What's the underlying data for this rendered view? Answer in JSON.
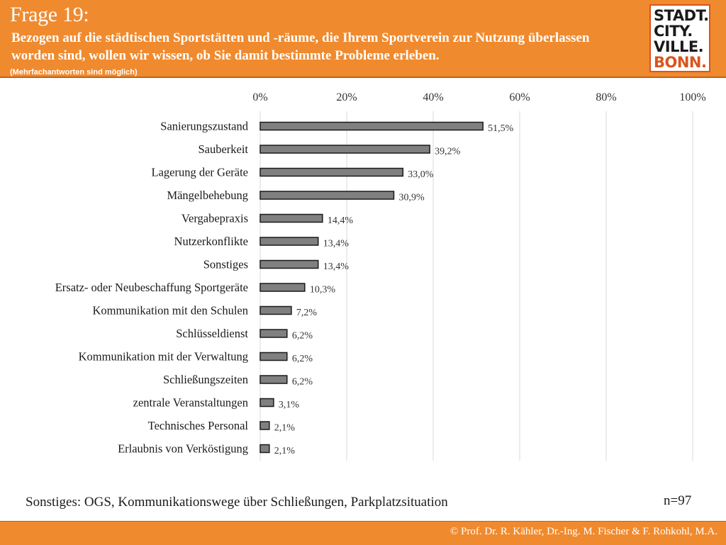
{
  "header": {
    "title": "Frage 19:",
    "question": "Bezogen auf die städtischen Sportstätten und -räume, die Ihrem Sportverein zur Nutzung überlassen worden sind, wollen wir wissen, ob Sie damit bestimmte Probleme erleben.",
    "note": "(Mehrfachantworten sind möglich)"
  },
  "logo": {
    "line1": "STADT.",
    "line2": "CITY.",
    "line3": "VILLE.",
    "line4": "BONN."
  },
  "chart_data": {
    "type": "bar",
    "orientation": "horizontal",
    "categories": [
      "Sanierungszustand",
      "Sauberkeit",
      "Lagerung der Geräte",
      "Mängelbehebung",
      "Vergabepraxis",
      "Nutzerkonflikte",
      "Sonstiges",
      "Ersatz- oder Neubeschaffung Sportgeräte",
      "Kommunikation mit den Schulen",
      "Schlüsseldienst",
      "Kommunikation mit der Verwaltung",
      "Schließungszeiten",
      "zentrale Veranstaltungen",
      "Technisches Personal",
      "Erlaubnis von Verköstigung"
    ],
    "values": [
      51.5,
      39.2,
      33.0,
      30.9,
      14.4,
      13.4,
      13.4,
      10.3,
      7.2,
      6.2,
      6.2,
      6.2,
      3.1,
      2.1,
      2.1
    ],
    "value_labels": [
      "51,5%",
      "39,2%",
      "33,0%",
      "30,9%",
      "14,4%",
      "13,4%",
      "13,4%",
      "10,3%",
      "7,2%",
      "6,2%",
      "6,2%",
      "6,2%",
      "3,1%",
      "2,1%",
      "2,1%"
    ],
    "xlim": [
      0,
      100
    ],
    "x_ticks": [
      "0%",
      "20%",
      "40%",
      "60%",
      "80%",
      "100%"
    ],
    "grid": true,
    "bar_color": "#808080"
  },
  "footnote": "Sonstiges: OGS, Kommunikationswege über Schließungen, Parkplatzsituation",
  "sample_size": "n=97",
  "footer": "© Prof. Dr. R. Kähler, Dr.-Ing. M. Fischer & F. Rohkohl, M.A."
}
